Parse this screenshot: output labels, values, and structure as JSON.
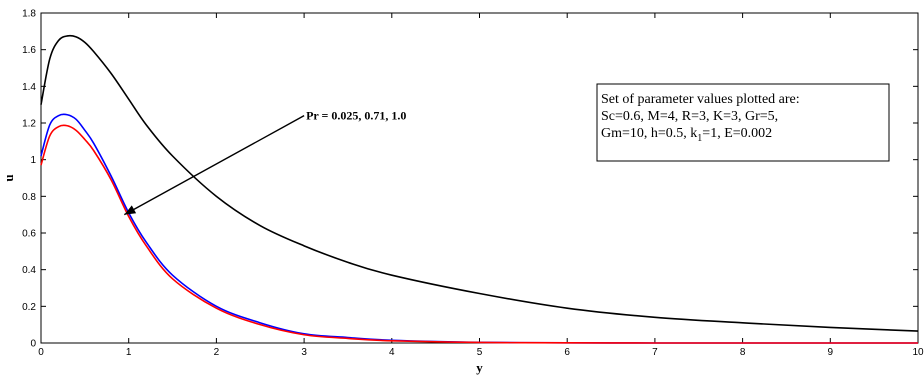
{
  "chart_data": {
    "type": "line",
    "title": "",
    "xlabel": "y",
    "ylabel": "u",
    "xlim": [
      0,
      10
    ],
    "ylim": [
      0,
      1.8
    ],
    "xticks": [
      "0",
      "1",
      "2",
      "3",
      "4",
      "5",
      "6",
      "7",
      "8",
      "9",
      "10"
    ],
    "yticks": [
      "0",
      "0.2",
      "0.4",
      "0.6",
      "0.8",
      "1",
      "1.2",
      "1.4",
      "1.6",
      "1.8"
    ],
    "grid": false,
    "x": [
      0,
      0.1,
      0.2,
      0.3,
      0.4,
      0.5,
      0.6,
      0.8,
      1.0,
      1.2,
      1.5,
      2.0,
      2.5,
      3.0,
      3.5,
      4.0,
      5.0,
      6.0,
      7.0,
      8.0,
      9.0,
      10.0
    ],
    "series": [
      {
        "color": "#000000",
        "values": [
          1.3,
          1.55,
          1.65,
          1.675,
          1.67,
          1.64,
          1.59,
          1.47,
          1.33,
          1.19,
          1.02,
          0.8,
          0.64,
          0.53,
          0.44,
          0.37,
          0.27,
          0.19,
          0.14,
          0.11,
          0.085,
          0.065
        ]
      },
      {
        "color": "#0000ff",
        "values": [
          1.02,
          1.19,
          1.24,
          1.245,
          1.22,
          1.16,
          1.09,
          0.91,
          0.71,
          0.55,
          0.37,
          0.2,
          0.11,
          0.05,
          0.03,
          0.015,
          0.004,
          0.001,
          0.0,
          0.0,
          0.0,
          0.0
        ]
      },
      {
        "color": "#ff0000",
        "values": [
          0.97,
          1.13,
          1.18,
          1.185,
          1.16,
          1.11,
          1.05,
          0.89,
          0.69,
          0.53,
          0.35,
          0.19,
          0.1,
          0.045,
          0.025,
          0.012,
          0.003,
          0.001,
          0.0,
          0.0,
          0.0,
          0.0
        ]
      }
    ],
    "annotation": {
      "text": "Pr = 0.025, 0.71, 1.0",
      "arrow_from": [
        3.0,
        1.24
      ],
      "arrow_to": [
        0.95,
        0.7
      ]
    },
    "legend_box": {
      "line1": "Set of parameter values plotted are:",
      "line2": "Sc=0.6, M=4, R=3, K=3, Gr=5,",
      "line3_pre": "Gm=10, h=0.5, k",
      "line3_sub": "1",
      "line3_post": "=1, E=0.002"
    }
  }
}
